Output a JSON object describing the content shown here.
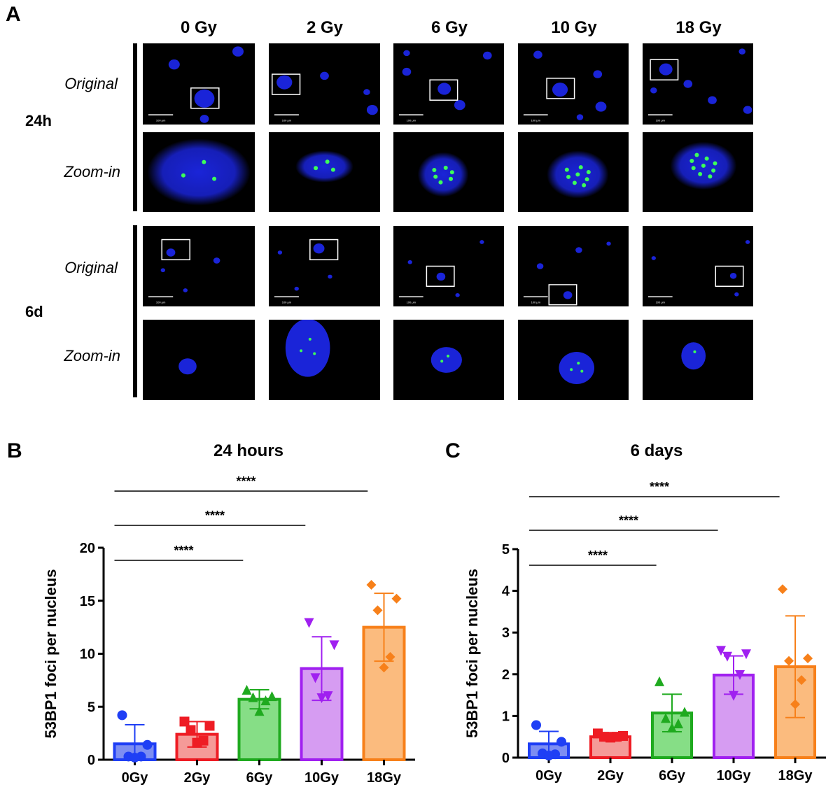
{
  "panel_a": {
    "letter": "A",
    "doses": [
      "0 Gy",
      "2 Gy",
      "6 Gy",
      "10 Gy",
      "18 Gy"
    ],
    "timepoints": [
      {
        "label": "24h",
        "rows": [
          "Original",
          "Zoom-in"
        ]
      },
      {
        "label": "6d",
        "rows": [
          "Original",
          "Zoom-in"
        ]
      }
    ],
    "scale_bar_label": "100 μm",
    "nucleus_color": "#1a24d8",
    "foci_color": "#3cff5a"
  },
  "panel_b": {
    "letter": "B"
  },
  "panel_c": {
    "letter": "C"
  },
  "chart_data": [
    {
      "type": "bar",
      "title": "24 hours",
      "ylabel": "53BP1 foci per nucleus",
      "categories": [
        "0Gy",
        "2Gy",
        "6Gy",
        "10Gy",
        "18Gy"
      ],
      "values": [
        1.5,
        2.4,
        5.7,
        8.6,
        12.5
      ],
      "errors": [
        1.8,
        1.2,
        0.9,
        3.0,
        3.2
      ],
      "points": [
        [
          4.2,
          1.4,
          0.3,
          0.3,
          0.2
        ],
        [
          3.6,
          3.2,
          2.8,
          1.8,
          1.6
        ],
        [
          6.6,
          6.0,
          5.9,
          5.6,
          4.6
        ],
        [
          12.9,
          10.8,
          7.7,
          6.0,
          5.8
        ],
        [
          16.5,
          15.2,
          14.1,
          9.7,
          8.7
        ]
      ],
      "markers": [
        "circle",
        "square",
        "triangle",
        "triangle-down",
        "diamond"
      ],
      "colors": [
        "#1f3ff5",
        "#ee1c24",
        "#1faa1f",
        "#a020f0",
        "#f7801a"
      ],
      "fills": [
        "#7d8ef2",
        "#f59a98",
        "#86de86",
        "#d69cf2",
        "#fbbb7e"
      ],
      "ylim": [
        0,
        20
      ],
      "yticks": [
        0,
        5,
        10,
        15,
        20
      ],
      "significance": [
        {
          "from": "0Gy",
          "to": "6Gy",
          "label": "****"
        },
        {
          "from": "0Gy",
          "to": "10Gy",
          "label": "****"
        },
        {
          "from": "0Gy",
          "to": "18Gy",
          "label": "****"
        }
      ]
    },
    {
      "type": "bar",
      "title": "6 days",
      "ylabel": "53BP1 foci per nucleus",
      "categories": [
        "0Gy",
        "2Gy",
        "6Gy",
        "10Gy",
        "18Gy"
      ],
      "values": [
        0.33,
        0.5,
        1.07,
        1.98,
        2.18
      ],
      "errors": [
        0.3,
        0.1,
        0.45,
        0.46,
        1.22
      ],
      "points": [
        [
          0.78,
          0.38,
          0.1,
          0.08,
          0.05
        ],
        [
          0.58,
          0.52,
          0.5,
          0.5,
          0.48
        ],
        [
          1.83,
          1.1,
          0.95,
          0.82,
          0.72
        ],
        [
          2.56,
          2.48,
          2.42,
          1.98,
          1.48
        ],
        [
          4.04,
          2.38,
          2.32,
          1.86,
          1.28
        ]
      ],
      "markers": [
        "circle",
        "square",
        "triangle",
        "triangle-down",
        "diamond"
      ],
      "colors": [
        "#1f3ff5",
        "#ee1c24",
        "#1faa1f",
        "#a020f0",
        "#f7801a"
      ],
      "fills": [
        "#7d8ef2",
        "#f59a98",
        "#86de86",
        "#d69cf2",
        "#fbbb7e"
      ],
      "ylim": [
        0,
        5
      ],
      "yticks": [
        0,
        1,
        2,
        3,
        4,
        5
      ],
      "significance": [
        {
          "from": "0Gy",
          "to": "6Gy",
          "label": "****"
        },
        {
          "from": "0Gy",
          "to": "10Gy",
          "label": "****"
        },
        {
          "from": "0Gy",
          "to": "18Gy",
          "label": "****"
        }
      ]
    }
  ]
}
